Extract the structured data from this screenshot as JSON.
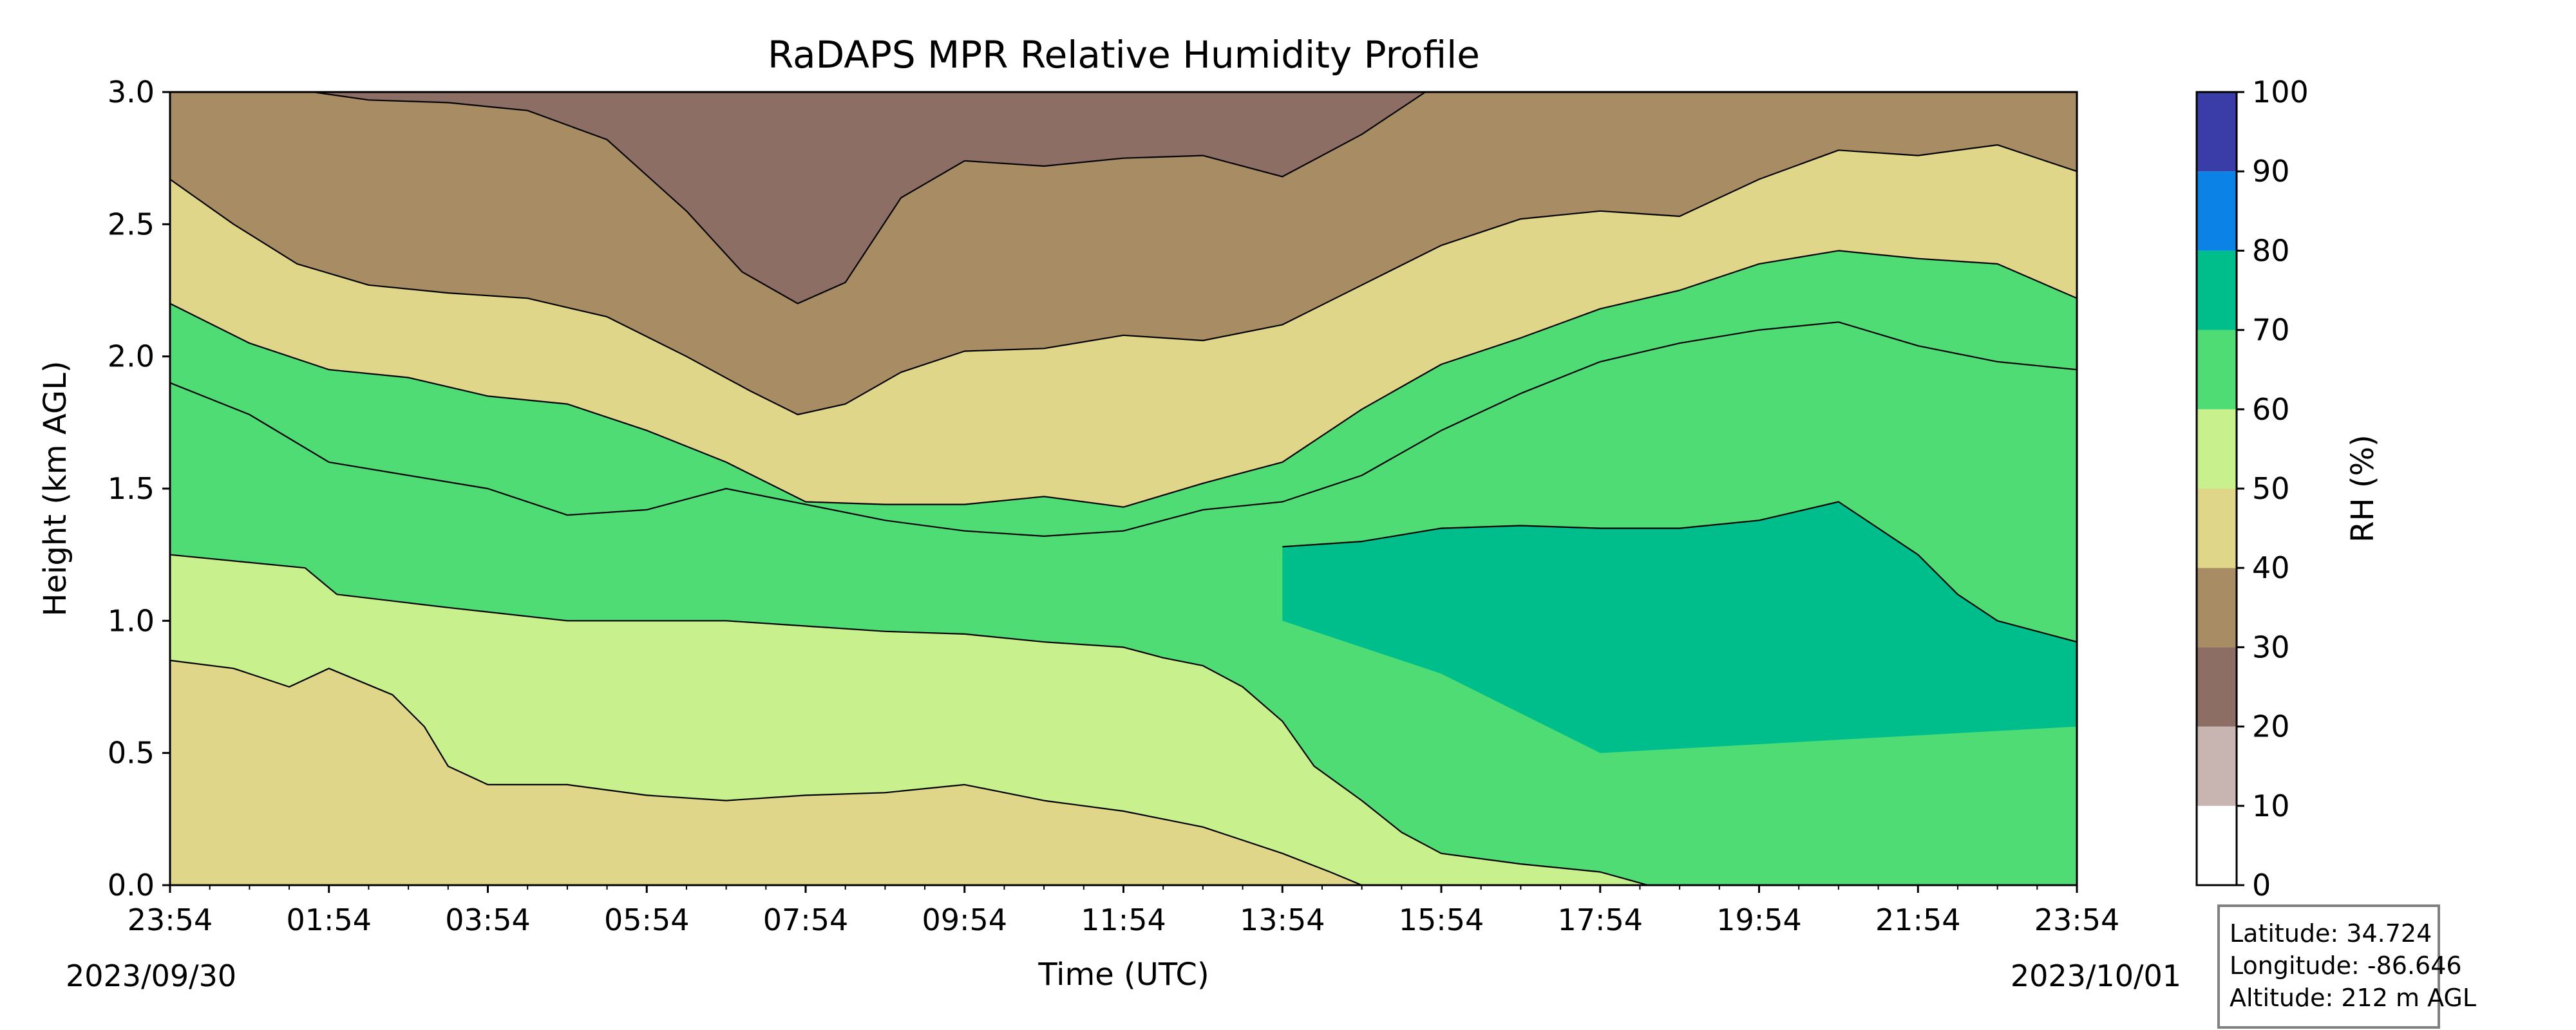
{
  "chart_data": {
    "type": "heatmap",
    "title": "RaDAPS MPR Relative Humidity Profile",
    "xlabel": "Time (UTC)",
    "ylabel": "Height (km AGL)",
    "x_ticks": [
      "23:54",
      "01:54",
      "03:54",
      "05:54",
      "07:54",
      "09:54",
      "11:54",
      "13:54",
      "15:54",
      "17:54",
      "19:54",
      "21:54",
      "23:54"
    ],
    "start_date": "2023/09/30",
    "end_date": "2023/10/01",
    "xlim_hours": [
      0,
      24
    ],
    "ylim": [
      0,
      3
    ],
    "y_ticks": [
      0.0,
      0.5,
      1.0,
      1.5,
      2.0,
      2.5,
      3.0
    ],
    "colorbar": {
      "label": "RH (%)",
      "levels": [
        0,
        10,
        20,
        30,
        40,
        50,
        60,
        70,
        80,
        90,
        100
      ],
      "colors": [
        "#ffffff",
        "#c8b4b0",
        "#8c6e64",
        "#a88c64",
        "#e0d68a",
        "#c8f08c",
        "#50dc74",
        "#00be8c",
        "#0a82e6",
        "#3a3ca8"
      ]
    },
    "boundaries": [
      {
        "level": 20,
        "points": [
          [
            0,
            3.0
          ],
          [
            1.8,
            3.0
          ],
          [
            2.5,
            2.97
          ],
          [
            3.5,
            2.96
          ],
          [
            4.5,
            2.93
          ],
          [
            5.5,
            2.82
          ],
          [
            6.5,
            2.55
          ],
          [
            7.2,
            2.32
          ],
          [
            7.9,
            2.2
          ],
          [
            8.5,
            2.28
          ],
          [
            9.2,
            2.6
          ],
          [
            10.0,
            2.74
          ],
          [
            11.0,
            2.72
          ],
          [
            12.0,
            2.75
          ],
          [
            13.0,
            2.76
          ],
          [
            14.0,
            2.68
          ],
          [
            15.0,
            2.84
          ],
          [
            15.8,
            3.0
          ],
          [
            24,
            3.0
          ]
        ]
      },
      {
        "level": 30,
        "points": [
          [
            0,
            2.67
          ],
          [
            0.8,
            2.5
          ],
          [
            1.6,
            2.35
          ],
          [
            2.5,
            2.27
          ],
          [
            3.5,
            2.24
          ],
          [
            4.5,
            2.22
          ],
          [
            5.5,
            2.15
          ],
          [
            6.5,
            2.0
          ],
          [
            7.3,
            1.87
          ],
          [
            7.9,
            1.78
          ],
          [
            8.5,
            1.82
          ],
          [
            9.2,
            1.94
          ],
          [
            10.0,
            2.02
          ],
          [
            11.0,
            2.03
          ],
          [
            12.0,
            2.08
          ],
          [
            13.0,
            2.06
          ],
          [
            14.0,
            2.12
          ],
          [
            15.0,
            2.27
          ],
          [
            16.0,
            2.42
          ],
          [
            17.0,
            2.52
          ],
          [
            18.0,
            2.55
          ],
          [
            19.0,
            2.53
          ],
          [
            20.0,
            2.67
          ],
          [
            21.0,
            2.78
          ],
          [
            22.0,
            2.76
          ],
          [
            23.0,
            2.8
          ],
          [
            24,
            2.7
          ]
        ]
      },
      {
        "level": 40,
        "points": [
          [
            0,
            2.2
          ],
          [
            1.0,
            2.05
          ],
          [
            2.0,
            1.95
          ],
          [
            3.0,
            1.92
          ],
          [
            4.0,
            1.85
          ],
          [
            5.0,
            1.82
          ],
          [
            6.0,
            1.72
          ],
          [
            7.0,
            1.6
          ],
          [
            8.0,
            1.45
          ],
          [
            9.0,
            1.44
          ],
          [
            10.0,
            1.44
          ],
          [
            11.0,
            1.47
          ],
          [
            12.0,
            1.43
          ],
          [
            13.0,
            1.52
          ],
          [
            14.0,
            1.6
          ],
          [
            15.0,
            1.8
          ],
          [
            16.0,
            1.97
          ],
          [
            17.0,
            2.07
          ],
          [
            18.0,
            2.18
          ],
          [
            19.0,
            2.25
          ],
          [
            20.0,
            2.35
          ],
          [
            21.0,
            2.4
          ],
          [
            22.0,
            2.37
          ],
          [
            23.0,
            2.35
          ],
          [
            24,
            2.22
          ]
        ]
      },
      {
        "level": 50,
        "points": [
          [
            0,
            0.85
          ],
          [
            0.8,
            0.82
          ],
          [
            1.5,
            0.75
          ],
          [
            2.0,
            0.82
          ],
          [
            2.8,
            0.72
          ],
          [
            3.2,
            0.6
          ],
          [
            3.5,
            0.45
          ],
          [
            4.0,
            0.38
          ],
          [
            5.0,
            0.38
          ],
          [
            6.0,
            0.34
          ],
          [
            7.0,
            0.32
          ],
          [
            8.0,
            0.34
          ],
          [
            9.0,
            0.35
          ],
          [
            10.0,
            0.38
          ],
          [
            11.0,
            0.32
          ],
          [
            12.0,
            0.28
          ],
          [
            13.0,
            0.22
          ],
          [
            14.0,
            0.12
          ],
          [
            14.6,
            0.05
          ],
          [
            15.0,
            0.0
          ]
        ]
      },
      {
        "level": 60,
        "points": [
          [
            0,
            1.9
          ],
          [
            1.0,
            1.78
          ],
          [
            2.0,
            1.6
          ],
          [
            3.0,
            1.55
          ],
          [
            4.0,
            1.5
          ],
          [
            5.0,
            1.4
          ],
          [
            6.0,
            1.42
          ],
          [
            7.0,
            1.5
          ],
          [
            8.0,
            1.44
          ],
          [
            9.0,
            1.38
          ],
          [
            10.0,
            1.34
          ],
          [
            11.0,
            1.32
          ],
          [
            12.0,
            1.34
          ],
          [
            13.0,
            1.42
          ],
          [
            14.0,
            1.45
          ],
          [
            15.0,
            1.55
          ],
          [
            16.0,
            1.72
          ],
          [
            17.0,
            1.86
          ],
          [
            18.0,
            1.98
          ],
          [
            19.0,
            2.05
          ],
          [
            20.0,
            2.1
          ],
          [
            21.0,
            2.13
          ],
          [
            22.0,
            2.04
          ],
          [
            23.0,
            1.98
          ],
          [
            24,
            1.95
          ]
        ]
      },
      {
        "level": 60,
        "points": [
          [
            0,
            1.25
          ],
          [
            1.7,
            1.2
          ],
          [
            2.1,
            1.1
          ],
          [
            3.5,
            1.05
          ],
          [
            5.0,
            1.0
          ],
          [
            6.0,
            1.0
          ],
          [
            7.0,
            1.0
          ],
          [
            8.0,
            0.98
          ],
          [
            9.0,
            0.96
          ],
          [
            10.0,
            0.95
          ],
          [
            11.0,
            0.92
          ],
          [
            12.0,
            0.9
          ],
          [
            12.5,
            0.86
          ],
          [
            13.0,
            0.83
          ],
          [
            13.5,
            0.75
          ],
          [
            14.0,
            0.62
          ],
          [
            14.4,
            0.45
          ],
          [
            15.0,
            0.32
          ],
          [
            15.5,
            0.2
          ],
          [
            16.0,
            0.12
          ],
          [
            17.0,
            0.08
          ],
          [
            18.0,
            0.05
          ],
          [
            18.6,
            0.0
          ]
        ]
      },
      {
        "level": 70,
        "points": [
          [
            14.0,
            1.28
          ],
          [
            15.0,
            1.3
          ],
          [
            16.0,
            1.35
          ],
          [
            17.0,
            1.36
          ],
          [
            18.0,
            1.35
          ],
          [
            19.0,
            1.35
          ],
          [
            20.0,
            1.38
          ],
          [
            21.0,
            1.45
          ],
          [
            22.0,
            1.25
          ],
          [
            22.5,
            1.1
          ],
          [
            23.0,
            1.0
          ],
          [
            24,
            0.92
          ]
        ]
      }
    ],
    "info_box": {
      "latitude": "Latitude: 34.724",
      "longitude": "Longitude: -86.646",
      "altitude": "Altitude: 212 m AGL"
    }
  }
}
